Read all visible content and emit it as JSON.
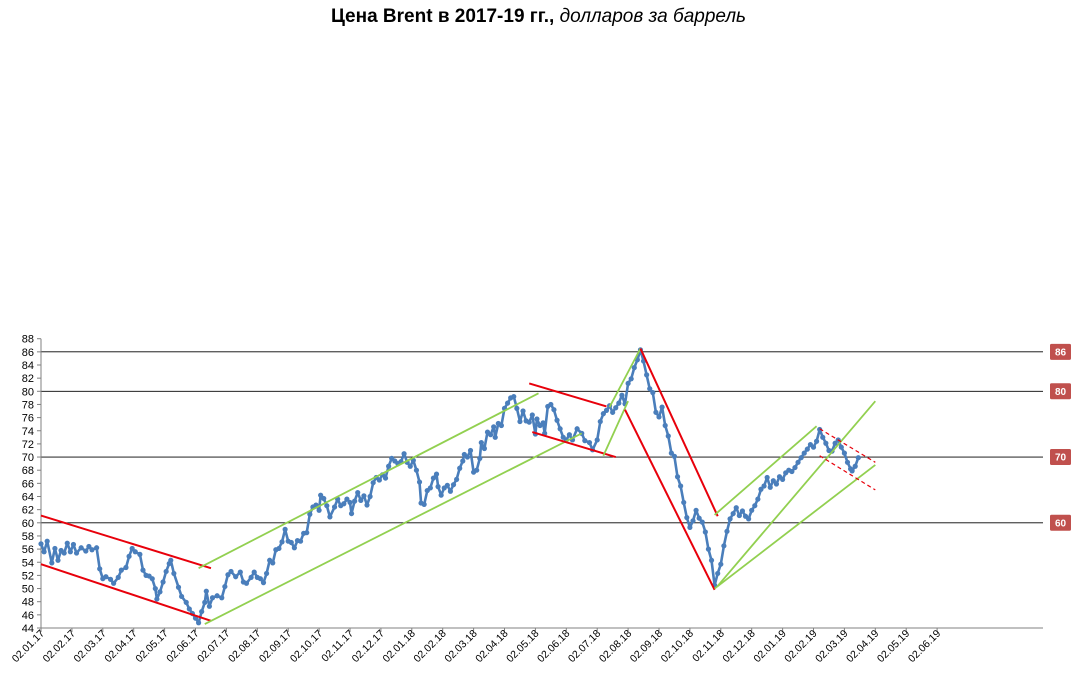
{
  "chart_data": {
    "type": "line",
    "title": "Цена Brent в 2017-19 гг.,",
    "subtitle": "долларов за баррель",
    "xlabel": "",
    "ylabel": "",
    "ylim": [
      44,
      88
    ],
    "y_ticks": [
      44,
      46,
      48,
      50,
      52,
      54,
      56,
      58,
      60,
      62,
      64,
      66,
      68,
      70,
      72,
      74,
      76,
      78,
      80,
      82,
      84,
      86,
      88
    ],
    "x_tick_labels": [
      "02.01.17",
      "02.02.17",
      "02.03.17",
      "02.04.17",
      "02.05.17",
      "02.06.17",
      "02.07.17",
      "02.08.17",
      "02.09.17",
      "02.10.17",
      "02.11.17",
      "02.12.17",
      "02.01.18",
      "02.02.18",
      "02.03.18",
      "02.04.18",
      "02.05.18",
      "02.06.18",
      "02.07.18",
      "02.08.18",
      "02.09.18",
      "02.10.18",
      "02.11.18",
      "02.12.18",
      "02.01.19",
      "02.02.19",
      "02.03.19",
      "02.04.19",
      "02.05.19",
      "02.06.19"
    ],
    "grid": "horizontal lines at 60, 70, 80",
    "reference_levels": [
      86,
      80,
      70,
      60
    ],
    "reference_labels": [
      "86",
      "80",
      "70",
      "60"
    ],
    "series": [
      {
        "color": "#4a7ebb",
        "points": [
          [
            0,
            56.8
          ],
          [
            0.1,
            55.6
          ],
          [
            0.2,
            57.2
          ],
          [
            0.35,
            53.9
          ],
          [
            0.45,
            56.1
          ],
          [
            0.55,
            54.3
          ],
          [
            0.65,
            55.8
          ],
          [
            0.75,
            55.4
          ],
          [
            0.85,
            56.9
          ],
          [
            0.95,
            55.6
          ],
          [
            1.05,
            56.7
          ],
          [
            1.15,
            55.4
          ],
          [
            1.3,
            56.2
          ],
          [
            1.45,
            55.7
          ],
          [
            1.55,
            56.4
          ],
          [
            1.65,
            55.9
          ],
          [
            1.8,
            56.2
          ],
          [
            1.9,
            53.0
          ],
          [
            2.0,
            51.5
          ],
          [
            2.1,
            51.8
          ],
          [
            2.25,
            51.4
          ],
          [
            2.35,
            50.8
          ],
          [
            2.5,
            51.7
          ],
          [
            2.6,
            52.8
          ],
          [
            2.75,
            53.2
          ],
          [
            2.85,
            54.9
          ],
          [
            2.95,
            56.1
          ],
          [
            3.05,
            55.6
          ],
          [
            3.2,
            55.2
          ],
          [
            3.3,
            52.8
          ],
          [
            3.4,
            52.0
          ],
          [
            3.5,
            51.9
          ],
          [
            3.6,
            51.5
          ],
          [
            3.7,
            50.0
          ],
          [
            3.75,
            48.4
          ],
          [
            3.85,
            49.5
          ],
          [
            3.95,
            51.0
          ],
          [
            4.05,
            52.6
          ],
          [
            4.15,
            53.8
          ],
          [
            4.2,
            54.3
          ],
          [
            4.3,
            52.3
          ],
          [
            4.45,
            50.2
          ],
          [
            4.55,
            48.8
          ],
          [
            4.7,
            47.9
          ],
          [
            4.8,
            46.9
          ],
          [
            4.9,
            46.2
          ],
          [
            5.0,
            45.5
          ],
          [
            5.1,
            44.8
          ],
          [
            5.2,
            46.5
          ],
          [
            5.3,
            47.9
          ],
          [
            5.35,
            49.6
          ],
          [
            5.45,
            47.3
          ],
          [
            5.55,
            48.6
          ],
          [
            5.7,
            48.9
          ],
          [
            5.85,
            48.6
          ],
          [
            5.95,
            50.3
          ],
          [
            6.05,
            52.1
          ],
          [
            6.15,
            52.6
          ],
          [
            6.3,
            51.8
          ],
          [
            6.45,
            52.5
          ],
          [
            6.55,
            51.0
          ],
          [
            6.65,
            50.8
          ],
          [
            6.8,
            51.7
          ],
          [
            6.9,
            52.5
          ],
          [
            7.0,
            51.7
          ],
          [
            7.1,
            51.5
          ],
          [
            7.2,
            50.9
          ],
          [
            7.3,
            52.3
          ],
          [
            7.4,
            54.3
          ],
          [
            7.5,
            53.9
          ],
          [
            7.6,
            55.9
          ],
          [
            7.7,
            56.1
          ],
          [
            7.8,
            57.1
          ],
          [
            7.9,
            59.0
          ],
          [
            8.0,
            57.2
          ],
          [
            8.1,
            57.0
          ],
          [
            8.2,
            56.2
          ],
          [
            8.3,
            57.3
          ],
          [
            8.4,
            57.2
          ],
          [
            8.5,
            58.4
          ],
          [
            8.6,
            58.5
          ],
          [
            8.7,
            61.3
          ],
          [
            8.8,
            62.4
          ],
          [
            8.9,
            62.7
          ],
          [
            9.0,
            61.9
          ],
          [
            9.05,
            64.2
          ],
          [
            9.15,
            63.7
          ],
          [
            9.25,
            62.6
          ],
          [
            9.35,
            60.9
          ],
          [
            9.5,
            62.4
          ],
          [
            9.6,
            63.6
          ],
          [
            9.7,
            62.6
          ],
          [
            9.8,
            62.9
          ],
          [
            9.9,
            63.6
          ],
          [
            10.0,
            63.1
          ],
          [
            10.05,
            61.4
          ],
          [
            10.15,
            63.3
          ],
          [
            10.25,
            64.6
          ],
          [
            10.35,
            63.4
          ],
          [
            10.45,
            64.1
          ],
          [
            10.55,
            62.7
          ],
          [
            10.65,
            64.0
          ],
          [
            10.75,
            66.1
          ],
          [
            10.85,
            66.9
          ],
          [
            10.95,
            66.5
          ],
          [
            11.05,
            67.3
          ],
          [
            11.15,
            66.8
          ],
          [
            11.25,
            68.6
          ],
          [
            11.35,
            69.8
          ],
          [
            11.45,
            69.4
          ],
          [
            11.55,
            69.0
          ],
          [
            11.65,
            69.3
          ],
          [
            11.75,
            70.5
          ],
          [
            11.85,
            69.2
          ],
          [
            11.95,
            68.6
          ],
          [
            12.05,
            69.5
          ],
          [
            12.15,
            68.0
          ],
          [
            12.25,
            66.2
          ],
          [
            12.3,
            63.0
          ],
          [
            12.4,
            62.8
          ],
          [
            12.5,
            64.9
          ],
          [
            12.6,
            65.3
          ],
          [
            12.7,
            66.8
          ],
          [
            12.8,
            67.4
          ],
          [
            12.85,
            65.5
          ],
          [
            12.95,
            64.2
          ],
          [
            13.05,
            65.3
          ],
          [
            13.15,
            65.7
          ],
          [
            13.25,
            64.8
          ],
          [
            13.35,
            65.8
          ],
          [
            13.45,
            66.6
          ],
          [
            13.55,
            68.3
          ],
          [
            13.65,
            69.4
          ],
          [
            13.7,
            70.4
          ],
          [
            13.8,
            70.0
          ],
          [
            13.9,
            71.0
          ],
          [
            14.0,
            67.7
          ],
          [
            14.1,
            68.0
          ],
          [
            14.2,
            69.8
          ],
          [
            14.25,
            72.2
          ],
          [
            14.35,
            71.3
          ],
          [
            14.45,
            73.8
          ],
          [
            14.55,
            73.4
          ],
          [
            14.65,
            74.6
          ],
          [
            14.7,
            73.0
          ],
          [
            14.8,
            75.1
          ],
          [
            14.9,
            74.8
          ],
          [
            15.0,
            77.4
          ],
          [
            15.1,
            78.2
          ],
          [
            15.2,
            79.0
          ],
          [
            15.3,
            79.2
          ],
          [
            15.4,
            77.4
          ],
          [
            15.5,
            75.4
          ],
          [
            15.6,
            77.0
          ],
          [
            15.7,
            75.5
          ],
          [
            15.8,
            75.3
          ],
          [
            15.9,
            76.4
          ],
          [
            16.0,
            73.5
          ],
          [
            16.05,
            75.8
          ],
          [
            16.15,
            74.8
          ],
          [
            16.25,
            75.2
          ],
          [
            16.3,
            73.6
          ],
          [
            16.4,
            77.7
          ],
          [
            16.5,
            78.0
          ],
          [
            16.6,
            77.2
          ],
          [
            16.7,
            75.6
          ],
          [
            16.8,
            74.3
          ],
          [
            16.9,
            73.0
          ],
          [
            17.0,
            72.6
          ],
          [
            17.1,
            73.4
          ],
          [
            17.2,
            72.6
          ],
          [
            17.35,
            74.3
          ],
          [
            17.5,
            73.6
          ],
          [
            17.6,
            72.5
          ],
          [
            17.75,
            72.2
          ],
          [
            17.85,
            71.1
          ],
          [
            18.0,
            72.6
          ],
          [
            18.1,
            75.4
          ],
          [
            18.2,
            76.6
          ],
          [
            18.3,
            77.1
          ],
          [
            18.4,
            77.8
          ],
          [
            18.5,
            76.8
          ],
          [
            18.6,
            77.5
          ],
          [
            18.7,
            78.2
          ],
          [
            18.8,
            79.4
          ],
          [
            18.9,
            78.1
          ],
          [
            19.0,
            81.2
          ],
          [
            19.1,
            81.9
          ],
          [
            19.2,
            83.6
          ],
          [
            19.3,
            84.8
          ],
          [
            19.4,
            86.3
          ],
          [
            19.5,
            84.6
          ],
          [
            19.6,
            82.5
          ],
          [
            19.7,
            80.4
          ],
          [
            19.8,
            79.8
          ],
          [
            19.9,
            76.8
          ],
          [
            20.0,
            76.1
          ],
          [
            20.1,
            77.6
          ],
          [
            20.2,
            74.8
          ],
          [
            20.3,
            73.2
          ],
          [
            20.4,
            70.6
          ],
          [
            20.5,
            70.1
          ],
          [
            20.6,
            67.0
          ],
          [
            20.7,
            65.6
          ],
          [
            20.8,
            63.1
          ],
          [
            20.9,
            60.8
          ],
          [
            21.0,
            59.3
          ],
          [
            21.1,
            60.3
          ],
          [
            21.2,
            61.9
          ],
          [
            21.3,
            60.7
          ],
          [
            21.4,
            60.1
          ],
          [
            21.5,
            58.6
          ],
          [
            21.6,
            56.0
          ],
          [
            21.7,
            54.3
          ],
          [
            21.8,
            50.5
          ],
          [
            21.9,
            52.3
          ],
          [
            22.0,
            53.7
          ],
          [
            22.1,
            56.5
          ],
          [
            22.2,
            58.7
          ],
          [
            22.3,
            60.6
          ],
          [
            22.4,
            61.4
          ],
          [
            22.5,
            62.3
          ],
          [
            22.6,
            61.1
          ],
          [
            22.7,
            61.8
          ],
          [
            22.8,
            61.0
          ],
          [
            22.9,
            60.6
          ],
          [
            23.0,
            61.9
          ],
          [
            23.1,
            62.6
          ],
          [
            23.2,
            63.6
          ],
          [
            23.3,
            65.1
          ],
          [
            23.4,
            65.6
          ],
          [
            23.5,
            66.9
          ],
          [
            23.6,
            65.4
          ],
          [
            23.7,
            66.4
          ],
          [
            23.8,
            65.9
          ],
          [
            23.9,
            67.0
          ],
          [
            24.0,
            66.6
          ],
          [
            24.1,
            67.6
          ],
          [
            24.2,
            68.0
          ],
          [
            24.3,
            67.8
          ],
          [
            24.4,
            68.4
          ],
          [
            24.5,
            69.2
          ],
          [
            24.6,
            69.9
          ],
          [
            24.7,
            70.6
          ],
          [
            24.8,
            71.2
          ],
          [
            24.9,
            71.9
          ],
          [
            25.0,
            71.5
          ],
          [
            25.1,
            72.4
          ],
          [
            25.2,
            74.2
          ],
          [
            25.3,
            73.0
          ],
          [
            25.4,
            72.1
          ],
          [
            25.5,
            71.0
          ],
          [
            25.6,
            70.9
          ],
          [
            25.7,
            72.1
          ],
          [
            25.8,
            72.6
          ],
          [
            25.9,
            71.5
          ],
          [
            26.0,
            70.6
          ],
          [
            26.1,
            69.2
          ],
          [
            26.2,
            68.2
          ],
          [
            26.25,
            67.9
          ],
          [
            26.35,
            68.6
          ],
          [
            26.45,
            69.9
          ]
        ]
      }
    ],
    "trend_lines": [
      {
        "color": "#e8000b",
        "from": [
          0,
          61.1
        ],
        "to": [
          5.5,
          53.1
        ]
      },
      {
        "color": "#e8000b",
        "from": [
          0,
          53.7
        ],
        "to": [
          5.5,
          45.1
        ]
      },
      {
        "color": "#92d050",
        "from": [
          5.1,
          53.1
        ],
        "to": [
          16.1,
          79.7
        ]
      },
      {
        "color": "#92d050",
        "from": [
          5.3,
          44.6
        ],
        "to": [
          17.5,
          73.6
        ]
      },
      {
        "color": "#e8000b",
        "from": [
          15.8,
          81.2
        ],
        "to": [
          18.3,
          77.7
        ]
      },
      {
        "color": "#e8000b",
        "from": [
          15.9,
          73.8
        ],
        "to": [
          18.6,
          70.0
        ]
      },
      {
        "color": "#92d050",
        "from": [
          18.4,
          77.6
        ],
        "to": [
          19.4,
          86.5
        ]
      },
      {
        "color": "#92d050",
        "from": [
          18.2,
          70.2
        ],
        "to": [
          19.0,
          78.5
        ]
      },
      {
        "color": "#e8000b",
        "from": [
          19.4,
          86.5
        ],
        "to": [
          21.9,
          61.0
        ]
      },
      {
        "color": "#e8000b",
        "from": [
          18.9,
          77.2
        ],
        "to": [
          21.8,
          49.8
        ]
      },
      {
        "color": "#92d050",
        "from": [
          21.8,
          61.2
        ],
        "to": [
          25.1,
          74.7
        ]
      },
      {
        "color": "#92d050",
        "from": [
          21.9,
          50.4
        ],
        "to": [
          27.0,
          78.5
        ]
      },
      {
        "color": "#92d050",
        "from": [
          21.8,
          50.0
        ],
        "to": [
          27.0,
          68.8
        ]
      }
    ],
    "dashed_trend_lines": [
      {
        "color": "#e8000b",
        "from": [
          25.2,
          74.3
        ],
        "to": [
          27.0,
          69.2
        ]
      },
      {
        "color": "#e8000b",
        "from": [
          25.2,
          70.2
        ],
        "to": [
          27.0,
          65.0
        ]
      }
    ]
  },
  "colors": {
    "series": "#4a7ebb",
    "trend_red": "#e8000b",
    "trend_green": "#92d050",
    "badge": "#c0504d",
    "axis": "#808080",
    "gridline": "#000000"
  }
}
